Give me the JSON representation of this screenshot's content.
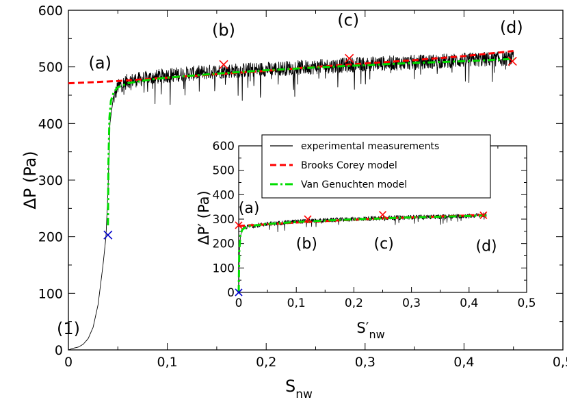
{
  "chart_data": [
    {
      "type": "line",
      "title": "",
      "xlabel": "S",
      "xlabel_sub": "nw",
      "ylabel": "ΔP (Pa)",
      "xlim": [
        0,
        0.5
      ],
      "ylim": [
        0,
        600
      ],
      "x_ticks": [
        0,
        0.1,
        0.2,
        0.3,
        0.4,
        0.5
      ],
      "x_tick_labels": [
        "0",
        "0,1",
        "0,2",
        "0,3",
        "0,4",
        "0,5"
      ],
      "y_ticks": [
        0,
        100,
        200,
        300,
        400,
        500,
        600
      ],
      "y_tick_labels": [
        "0",
        "100",
        "200",
        "300",
        "400",
        "500",
        "600"
      ],
      "grid": false,
      "series": [
        {
          "name": "experimental measurements",
          "color": "#000000",
          "style": "solid-noisy",
          "x": [
            0,
            0.005,
            0.01,
            0.015,
            0.02,
            0.025,
            0.03,
            0.035,
            0.038,
            0.04,
            0.042,
            0.045,
            0.05,
            0.06,
            0.08,
            0.1,
            0.15,
            0.2,
            0.25,
            0.3,
            0.35,
            0.4,
            0.45
          ],
          "y": [
            0,
            3,
            5,
            10,
            20,
            40,
            80,
            150,
            200,
            280,
            400,
            440,
            465,
            475,
            480,
            485,
            492,
            496,
            500,
            505,
            508,
            512,
            515
          ]
        },
        {
          "name": "Brooks Corey model",
          "color": "#ff0000",
          "style": "dashed",
          "x": [
            0,
            0.05,
            0.1,
            0.15,
            0.2,
            0.25,
            0.3,
            0.35,
            0.4,
            0.45
          ],
          "y": [
            471,
            475,
            481,
            487,
            493,
            500,
            506,
            512,
            519,
            528
          ]
        },
        {
          "name": "Van Genuchten model",
          "color": "#00dd00",
          "style": "dash-dot",
          "x": [
            0.04,
            0.0405,
            0.0415,
            0.043,
            0.046,
            0.05,
            0.06,
            0.08,
            0.1,
            0.15,
            0.2,
            0.25,
            0.3,
            0.35,
            0.4,
            0.45
          ],
          "y": [
            220,
            330,
            410,
            440,
            456,
            464,
            471,
            477,
            481,
            488,
            494,
            499,
            503,
            507,
            510,
            514
          ]
        }
      ],
      "markers": [
        {
          "x": 0.04,
          "y": 203,
          "color": "#0000cc"
        },
        {
          "x": 0.157,
          "y": 504,
          "color": "#ff0000"
        },
        {
          "x": 0.284,
          "y": 515,
          "color": "#ff0000"
        },
        {
          "x": 0.449,
          "y": 510,
          "color": "#ff0000"
        }
      ],
      "annotations": [
        {
          "text": "(1)",
          "x": 0.0,
          "y": 28
        },
        {
          "text": "(a)",
          "x": 0.032,
          "y": 497
        },
        {
          "text": "(b)",
          "x": 0.157,
          "y": 555
        },
        {
          "text": "(c)",
          "x": 0.283,
          "y": 573
        },
        {
          "text": "(d)",
          "x": 0.448,
          "y": 560
        }
      ]
    },
    {
      "type": "line",
      "title": "",
      "xlabel": "S′",
      "xlabel_sub": "nw",
      "ylabel": "ΔP′ (Pa)",
      "xlim": [
        0,
        0.5
      ],
      "ylim": [
        0,
        600
      ],
      "x_ticks": [
        0,
        0.1,
        0.2,
        0.3,
        0.4,
        0.5
      ],
      "x_tick_labels": [
        "0",
        "0,1",
        "0,2",
        "0,3",
        "0,4",
        "0,5"
      ],
      "y_ticks": [
        0,
        100,
        200,
        300,
        400,
        500,
        600
      ],
      "y_tick_labels": [
        "0",
        "100",
        "200",
        "300",
        "400",
        "500",
        "600"
      ],
      "grid": false,
      "series": [
        {
          "name": "experimental measurements",
          "color": "#000000",
          "style": "solid-noisy",
          "x": [
            0,
            0.001,
            0.003,
            0.006,
            0.01,
            0.02,
            0.05,
            0.1,
            0.15,
            0.2,
            0.25,
            0.3,
            0.35,
            0.4,
            0.43
          ],
          "y": [
            0,
            150,
            230,
            255,
            265,
            272,
            280,
            290,
            295,
            300,
            305,
            308,
            310,
            313,
            318
          ]
        },
        {
          "name": "Brooks Corey model",
          "color": "#ff0000",
          "style": "dashed",
          "x": [
            0,
            0.05,
            0.1,
            0.15,
            0.2,
            0.25,
            0.3,
            0.35,
            0.4,
            0.43
          ],
          "y": [
            272,
            279,
            286,
            292,
            298,
            303,
            307,
            311,
            315,
            318
          ]
        },
        {
          "name": "Van Genuchten model",
          "color": "#00dd00",
          "style": "dash-dot",
          "x": [
            0,
            0.001,
            0.003,
            0.006,
            0.01,
            0.02,
            0.05,
            0.1,
            0.15,
            0.2,
            0.25,
            0.3,
            0.35,
            0.4,
            0.43
          ],
          "y": [
            0,
            170,
            235,
            256,
            264,
            272,
            280,
            288,
            294,
            299,
            303,
            307,
            310,
            313,
            315
          ]
        }
      ],
      "markers": [
        {
          "x": 0.0,
          "y": 0,
          "color": "#0000cc"
        },
        {
          "x": 0.0,
          "y": 275,
          "color": "#ff0000"
        },
        {
          "x": 0.12,
          "y": 300,
          "color": "#ff0000"
        },
        {
          "x": 0.25,
          "y": 318,
          "color": "#ff0000"
        },
        {
          "x": 0.425,
          "y": 316,
          "color": "#ff0000"
        }
      ],
      "annotations": [
        {
          "text": "(a)",
          "x": 0.018,
          "y": 325
        },
        {
          "text": "(b)",
          "x": 0.118,
          "y": 180
        },
        {
          "text": "(c)",
          "x": 0.252,
          "y": 180
        },
        {
          "text": "(d)",
          "x": 0.43,
          "y": 170
        }
      ]
    }
  ],
  "legend": {
    "placement": "inside-inset-top",
    "entries": [
      {
        "label": "experimental measurements",
        "color": "#000000",
        "style": "solid"
      },
      {
        "label": "Brooks Corey model",
        "color": "#ff0000",
        "style": "dashed"
      },
      {
        "label": "Van Genuchten model",
        "color": "#00dd00",
        "style": "dash-dot"
      }
    ]
  }
}
